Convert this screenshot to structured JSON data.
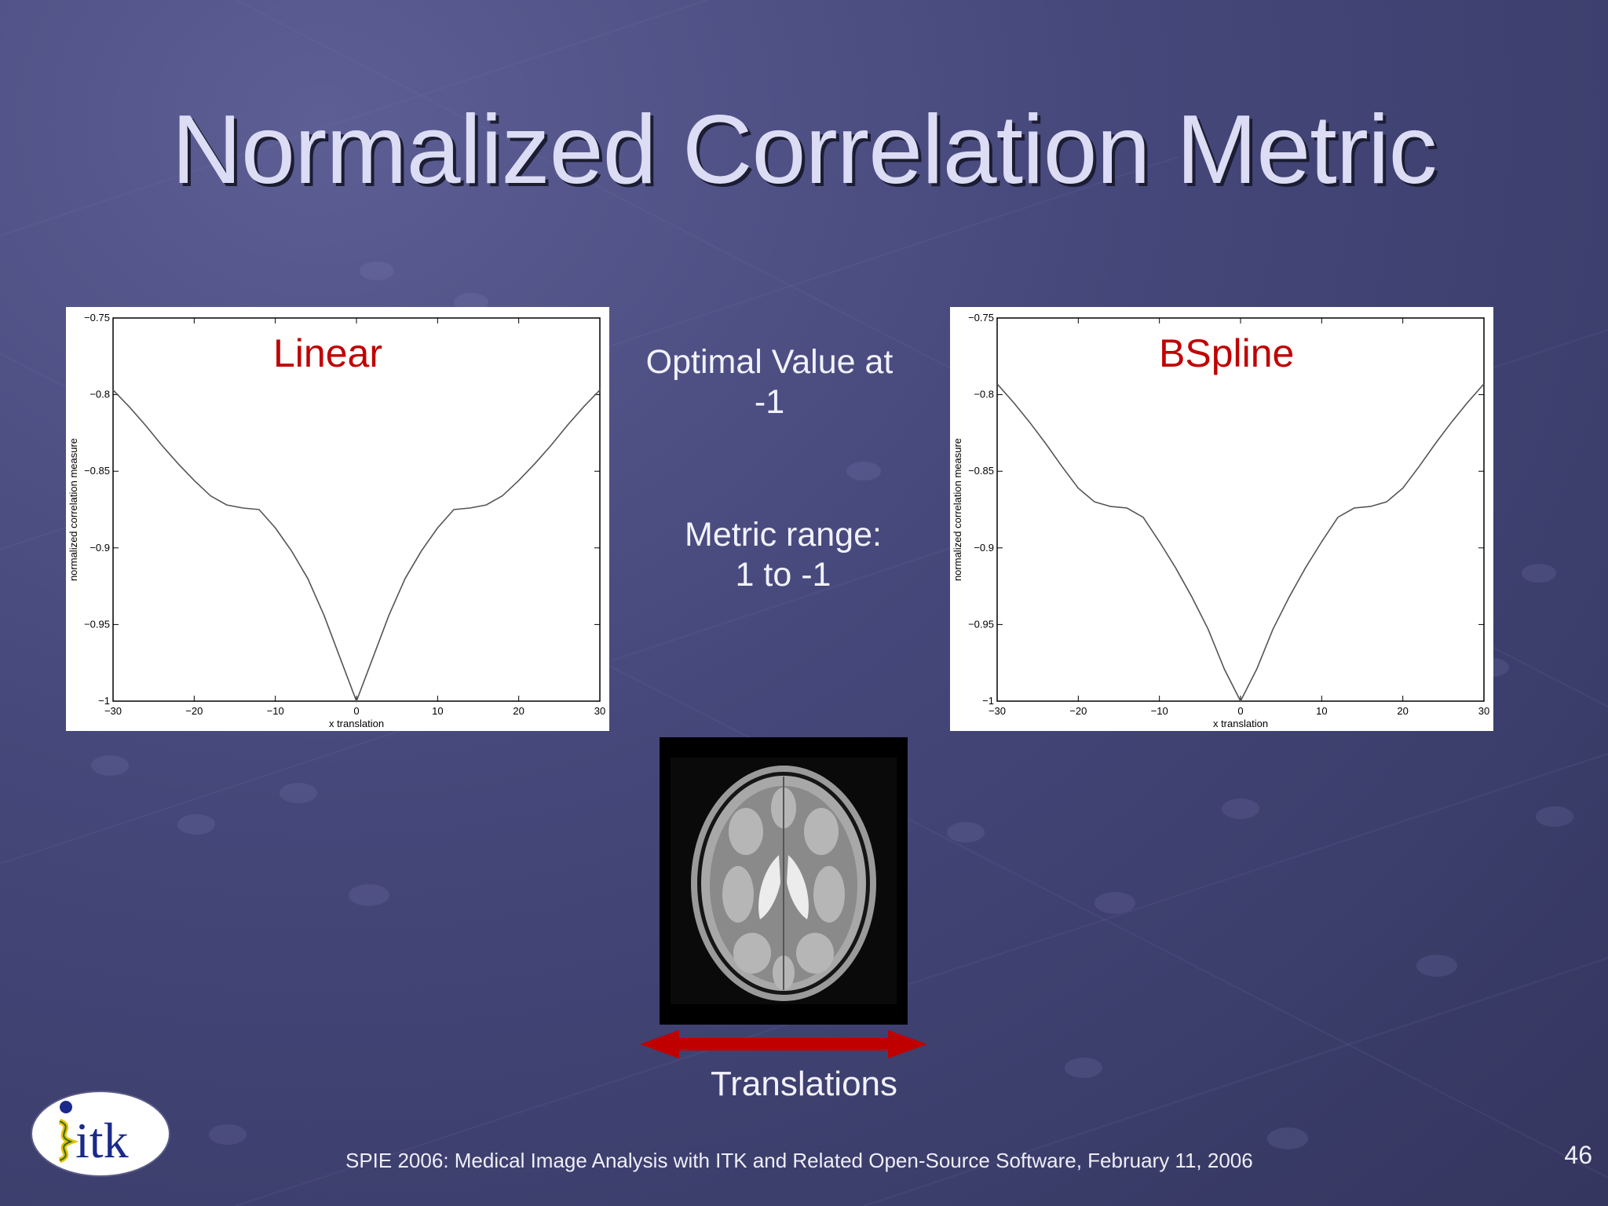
{
  "slide": {
    "title": "Normalized Correlation Metric",
    "optimal_line1": "Optimal Value at",
    "optimal_line2": "-1",
    "range_line1": "Metric range:",
    "range_line2": "1 to -1",
    "translations_label": "Translations",
    "footer": "SPIE 2006: Medical Image Analysis with ITK and Related Open-Source Software, February 11, 2006",
    "page_number": "46",
    "logo_text": "itk"
  },
  "colors": {
    "title": "#dcdcf5",
    "chart_label": "#c00000",
    "arrow": "#c00000",
    "background": "#45477a"
  },
  "chart_data": [
    {
      "type": "line",
      "label": "Linear",
      "xlabel": "x translation",
      "ylabel": "normalized correlation measure",
      "xlim": [
        -30,
        30
      ],
      "ylim": [
        -1,
        -0.75
      ],
      "xticks": [
        -30,
        -20,
        -10,
        0,
        10,
        20,
        30
      ],
      "yticks": [
        -1,
        -0.95,
        -0.9,
        -0.85,
        -0.8,
        -0.75
      ],
      "xtick_labels": [
        "−30",
        "−20",
        "−10",
        "0",
        "10",
        "20",
        "30"
      ],
      "ytick_labels": [
        "−1",
        "−0.95",
        "−0.9",
        "−0.85",
        "−0.8",
        "−0.75"
      ],
      "x": [
        -30,
        -28,
        -26,
        -24,
        -22,
        -20,
        -18,
        -16,
        -14,
        -12,
        -10,
        -8,
        -6,
        -4,
        -2,
        0,
        2,
        4,
        6,
        8,
        10,
        12,
        14,
        16,
        18,
        20,
        22,
        24,
        26,
        28,
        30
      ],
      "y": [
        -0.797,
        -0.808,
        -0.82,
        -0.833,
        -0.845,
        -0.856,
        -0.866,
        -0.872,
        -0.874,
        -0.875,
        -0.887,
        -0.902,
        -0.92,
        -0.944,
        -0.972,
        -1.0,
        -0.972,
        -0.944,
        -0.92,
        -0.902,
        -0.887,
        -0.875,
        -0.874,
        -0.872,
        -0.866,
        -0.856,
        -0.845,
        -0.833,
        -0.82,
        -0.808,
        -0.797
      ],
      "grid": false
    },
    {
      "type": "line",
      "label": "BSpline",
      "xlabel": "x translation",
      "ylabel": "normalized correlation measure",
      "xlim": [
        -30,
        30
      ],
      "ylim": [
        -1,
        -0.75
      ],
      "xticks": [
        -30,
        -20,
        -10,
        0,
        10,
        20,
        30
      ],
      "yticks": [
        -1,
        -0.95,
        -0.9,
        -0.85,
        -0.8,
        -0.75
      ],
      "xtick_labels": [
        "−30",
        "−20",
        "−10",
        "0",
        "10",
        "20",
        "30"
      ],
      "ytick_labels": [
        "−1",
        "−0.95",
        "−0.9",
        "−0.85",
        "−0.8",
        "−0.75"
      ],
      "x": [
        -30,
        -28,
        -26,
        -24,
        -22,
        -20,
        -18,
        -16,
        -14,
        -12,
        -10,
        -8,
        -6,
        -4,
        -2,
        0,
        2,
        4,
        6,
        8,
        10,
        12,
        14,
        16,
        18,
        20,
        22,
        24,
        26,
        28,
        30
      ],
      "y": [
        -0.793,
        -0.805,
        -0.818,
        -0.832,
        -0.847,
        -0.861,
        -0.87,
        -0.873,
        -0.874,
        -0.88,
        -0.896,
        -0.913,
        -0.932,
        -0.953,
        -0.979,
        -1.0,
        -0.979,
        -0.953,
        -0.932,
        -0.913,
        -0.896,
        -0.88,
        -0.874,
        -0.873,
        -0.87,
        -0.861,
        -0.847,
        -0.832,
        -0.818,
        -0.805,
        -0.793
      ],
      "grid": false
    }
  ]
}
